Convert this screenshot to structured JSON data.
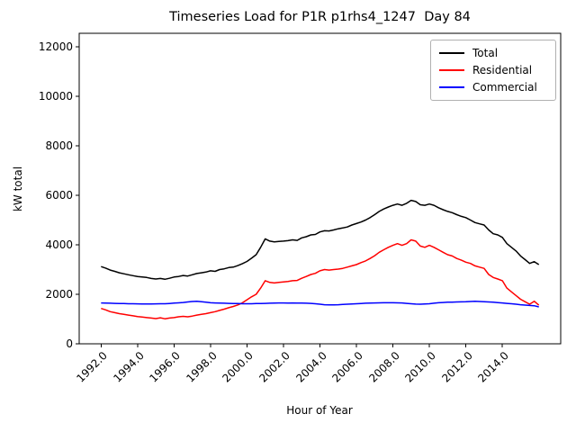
{
  "chart_data": {
    "type": "line",
    "title": "Timeseries Load for P1R p1rhs4_1247  Day 84",
    "xlabel": "Hour of Year",
    "ylabel": "kW total",
    "xlim": [
      1990.8,
      2017.2
    ],
    "ylim": [
      0,
      12550
    ],
    "grid": false,
    "legend_position": "upper right",
    "xticks": [
      {
        "value": 1992,
        "label": "1992.0"
      },
      {
        "value": 1994,
        "label": "1994.0"
      },
      {
        "value": 1996,
        "label": "1996.0"
      },
      {
        "value": 1998,
        "label": "1998.0"
      },
      {
        "value": 2000,
        "label": "2000.0"
      },
      {
        "value": 2002,
        "label": "2002.0"
      },
      {
        "value": 2004,
        "label": "2004.0"
      },
      {
        "value": 2006,
        "label": "2006.0"
      },
      {
        "value": 2008,
        "label": "2008.0"
      },
      {
        "value": 2010,
        "label": "2010.0"
      },
      {
        "value": 2012,
        "label": "2012.0"
      },
      {
        "value": 2014,
        "label": "2014.0"
      }
    ],
    "yticks": [
      {
        "value": 0,
        "label": "0"
      },
      {
        "value": 2000,
        "label": "2000"
      },
      {
        "value": 4000,
        "label": "4000"
      },
      {
        "value": 6000,
        "label": "6000"
      },
      {
        "value": 8000,
        "label": "8000"
      },
      {
        "value": 10000,
        "label": "10000"
      },
      {
        "value": 12000,
        "label": "12000"
      }
    ],
    "x": [
      1992.0,
      1992.25,
      1992.5,
      1992.75,
      1993.0,
      1993.25,
      1993.5,
      1993.75,
      1994.0,
      1994.25,
      1994.5,
      1994.75,
      1995.0,
      1995.25,
      1995.5,
      1995.75,
      1996.0,
      1996.25,
      1996.5,
      1996.75,
      1997.0,
      1997.25,
      1997.5,
      1997.75,
      1998.0,
      1998.25,
      1998.5,
      1998.75,
      1999.0,
      1999.25,
      1999.5,
      1999.75,
      2000.0,
      2000.25,
      2000.5,
      2000.75,
      2001.0,
      2001.25,
      2001.5,
      2001.75,
      2002.0,
      2002.25,
      2002.5,
      2002.75,
      2003.0,
      2003.25,
      2003.5,
      2003.75,
      2004.0,
      2004.25,
      2004.5,
      2004.75,
      2005.0,
      2005.25,
      2005.5,
      2005.75,
      2006.0,
      2006.25,
      2006.5,
      2006.75,
      2007.0,
      2007.25,
      2007.5,
      2007.75,
      2008.0,
      2008.25,
      2008.5,
      2008.75,
      2009.0,
      2009.25,
      2009.5,
      2009.75,
      2010.0,
      2010.25,
      2010.5,
      2010.75,
      2011.0,
      2011.25,
      2011.5,
      2011.75,
      2012.0,
      2012.25,
      2012.5,
      2012.75,
      2013.0,
      2013.25,
      2013.5,
      2013.75,
      2014.0,
      2014.25,
      2014.5,
      2014.75,
      2015.0,
      2015.25,
      2015.5,
      2015.75,
      2016.0
    ],
    "series": [
      {
        "name": "Total",
        "color": "#000000",
        "values": [
          3120,
          3060,
          2980,
          2930,
          2870,
          2830,
          2790,
          2755,
          2720,
          2700,
          2680,
          2640,
          2620,
          2640,
          2610,
          2650,
          2700,
          2720,
          2760,
          2740,
          2790,
          2840,
          2870,
          2900,
          2950,
          2930,
          3000,
          3030,
          3080,
          3100,
          3160,
          3240,
          3330,
          3460,
          3600,
          3900,
          4240,
          4150,
          4120,
          4140,
          4150,
          4170,
          4200,
          4180,
          4280,
          4330,
          4400,
          4420,
          4520,
          4570,
          4560,
          4600,
          4650,
          4680,
          4720,
          4800,
          4860,
          4920,
          5000,
          5100,
          5220,
          5350,
          5450,
          5530,
          5600,
          5650,
          5600,
          5680,
          5800,
          5750,
          5620,
          5600,
          5650,
          5600,
          5500,
          5420,
          5350,
          5300,
          5220,
          5150,
          5100,
          5000,
          4900,
          4850,
          4800,
          4600,
          4450,
          4400,
          4300,
          4050,
          3900,
          3750,
          3550,
          3400,
          3250,
          3320,
          3200
        ]
      },
      {
        "name": "Residential",
        "color": "#ff0000",
        "values": [
          1430,
          1370,
          1300,
          1260,
          1220,
          1190,
          1160,
          1130,
          1100,
          1080,
          1060,
          1040,
          1020,
          1050,
          1010,
          1040,
          1060,
          1090,
          1110,
          1090,
          1120,
          1160,
          1190,
          1220,
          1260,
          1300,
          1350,
          1400,
          1460,
          1510,
          1570,
          1660,
          1780,
          1900,
          2000,
          2250,
          2550,
          2480,
          2460,
          2480,
          2500,
          2520,
          2550,
          2560,
          2650,
          2720,
          2800,
          2850,
          2950,
          3000,
          2980,
          3000,
          3020,
          3050,
          3100,
          3150,
          3200,
          3280,
          3350,
          3450,
          3560,
          3700,
          3800,
          3900,
          3980,
          4050,
          3980,
          4050,
          4200,
          4150,
          3950,
          3900,
          3980,
          3900,
          3800,
          3700,
          3600,
          3550,
          3450,
          3380,
          3300,
          3250,
          3150,
          3100,
          3050,
          2800,
          2680,
          2620,
          2550,
          2250,
          2100,
          1950,
          1800,
          1700,
          1600,
          1720,
          1560
        ]
      },
      {
        "name": "Commercial",
        "color": "#0000ff",
        "values": [
          1650,
          1645,
          1640,
          1635,
          1630,
          1625,
          1620,
          1618,
          1615,
          1612,
          1610,
          1612,
          1615,
          1618,
          1620,
          1630,
          1645,
          1655,
          1670,
          1690,
          1710,
          1720,
          1700,
          1680,
          1660,
          1650,
          1645,
          1640,
          1635,
          1630,
          1625,
          1620,
          1618,
          1620,
          1625,
          1630,
          1635,
          1640,
          1645,
          1650,
          1650,
          1648,
          1650,
          1648,
          1645,
          1640,
          1635,
          1620,
          1600,
          1580,
          1570,
          1575,
          1580,
          1590,
          1600,
          1610,
          1620,
          1630,
          1640,
          1645,
          1650,
          1655,
          1660,
          1660,
          1660,
          1655,
          1650,
          1635,
          1620,
          1605,
          1600,
          1610,
          1620,
          1640,
          1660,
          1670,
          1680,
          1685,
          1690,
          1695,
          1700,
          1710,
          1720,
          1710,
          1700,
          1690,
          1680,
          1665,
          1650,
          1635,
          1620,
          1600,
          1580,
          1565,
          1550,
          1540,
          1490
        ]
      }
    ]
  }
}
